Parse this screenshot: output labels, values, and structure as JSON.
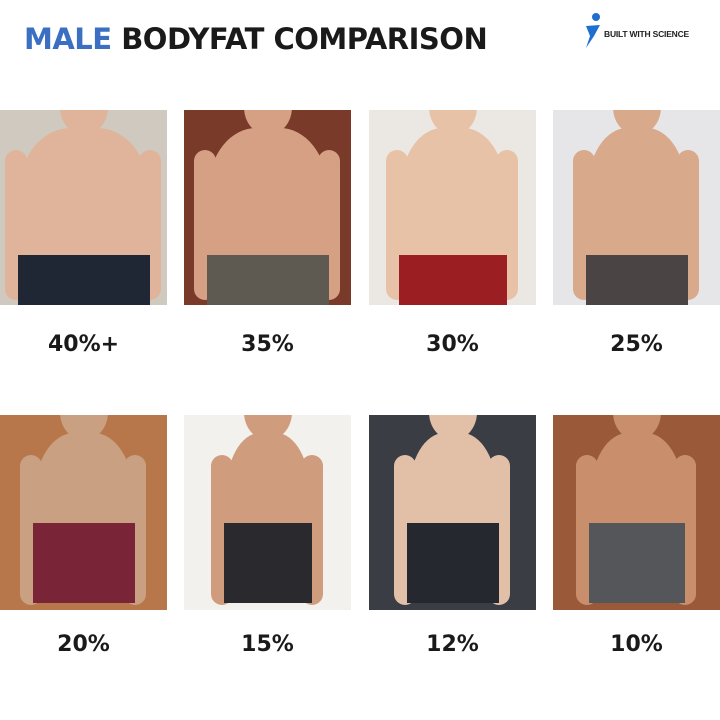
{
  "header": {
    "title_accent": "MALE",
    "title_rest": "BODYFAT COMPARISON"
  },
  "logo": {
    "text": "BUILT WITH SCIENCE"
  },
  "colors": {
    "accent": "#3a6fc2",
    "logo_blue": "#1f6fd1"
  },
  "items": [
    {
      "label": "40%+",
      "bg": "#cfc9c0",
      "skin": "#e0b49a",
      "shorts": "#1e2733",
      "width": 128
    },
    {
      "label": "35%",
      "bg": "#7a3a2a",
      "skin": "#d6a084",
      "shorts": "#5e5a52",
      "width": 118
    },
    {
      "label": "30%",
      "bg": "#ebe7e2",
      "skin": "#e8c2a6",
      "shorts": "#9b1f22",
      "width": 104
    },
    {
      "label": "25%",
      "bg": "#e6e6e8",
      "skin": "#d9a98c",
      "shorts": "#4a4544",
      "width": 98
    },
    {
      "label": "20%",
      "bg": "#b8774a",
      "skin": "#caa083",
      "shorts": "#7a2438",
      "width": 98
    },
    {
      "label": "15%",
      "bg": "#f3f1ee",
      "skin": "#cf9d7e",
      "shorts": "#2a2a2e",
      "width": 84
    },
    {
      "label": "12%",
      "bg": "#3a3d44",
      "skin": "#e2c0a8",
      "shorts": "#25292f",
      "width": 88
    },
    {
      "label": "10%",
      "bg": "#9a5a3a",
      "skin": "#c98f6c",
      "shorts": "#55565a",
      "width": 92
    }
  ]
}
